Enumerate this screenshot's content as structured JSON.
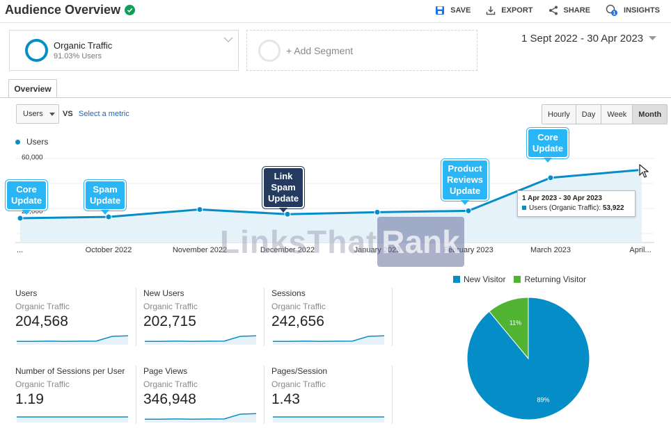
{
  "header": {
    "title": "Audience Overview",
    "actions": {
      "save": "SAVE",
      "export": "EXPORT",
      "share": "SHARE",
      "insights": "INSIGHTS"
    },
    "insights_badge": "1"
  },
  "segment": {
    "name": "Organic Traffic",
    "subtitle": "91.03% Users",
    "add_label": "+ Add Segment"
  },
  "date_range": "1 Sept 2022 - 30 Apr 2023",
  "tabs": {
    "overview": "Overview"
  },
  "controls": {
    "metric": "Users",
    "vs": "VS",
    "select_metric": "Select a metric",
    "granularity": [
      "Hourly",
      "Day",
      "Week",
      "Month"
    ],
    "selected_granularity": "Month"
  },
  "chart_data": {
    "type": "line",
    "series": [
      {
        "name": "Users",
        "values": [
          18000,
          19000,
          24500,
          21000,
          22500,
          23500,
          48000,
          53922
        ]
      }
    ],
    "x": [
      "...",
      "October 2022",
      "November 2022",
      "December 2022",
      "January 2023",
      "February 2023",
      "March 2023",
      "April..."
    ],
    "ytick_labels": [
      "60,000",
      "20,000"
    ],
    "ylim": [
      0,
      68000
    ],
    "color": "#058dc7",
    "grid": true
  },
  "callouts": [
    {
      "text": "Core\nUpdate",
      "style": "blue"
    },
    {
      "text": "Spam\nUpdate",
      "style": "blue"
    },
    {
      "text": "Link\nSpam\nUpdate",
      "style": "dark"
    },
    {
      "text": "Product\nReviews\nUpdate",
      "style": "blue"
    },
    {
      "text": "Core\nUpdate",
      "style": "blue"
    }
  ],
  "tooltip": {
    "date": "1 Apr 2023 - 30 Apr 2023",
    "label": "Users (Organic Traffic):",
    "value": "53,922"
  },
  "watermark": {
    "left": "LinksThat",
    "right": "Rank"
  },
  "metrics": [
    {
      "name": "Users",
      "segment": "Organic Traffic",
      "value": "204,568",
      "spark": [
        3,
        3,
        3.2,
        3,
        3.1,
        3.2,
        7.5,
        8
      ]
    },
    {
      "name": "New Users",
      "segment": "Organic Traffic",
      "value": "202,715",
      "spark": [
        3,
        3,
        3.2,
        3,
        3.1,
        3.2,
        7.5,
        8
      ]
    },
    {
      "name": "Sessions",
      "segment": "Organic Traffic",
      "value": "242,656",
      "spark": [
        3,
        3,
        3.2,
        3,
        3.1,
        3.2,
        7.5,
        8
      ]
    },
    {
      "name": "Number of Sessions per User",
      "segment": "Organic Traffic",
      "value": "1.19",
      "spark": [
        5,
        5,
        5,
        5,
        5,
        5,
        5,
        5
      ]
    },
    {
      "name": "Page Views",
      "segment": "Organic Traffic",
      "value": "346,948",
      "spark": [
        3,
        3,
        3.2,
        3,
        3.1,
        3.2,
        7.5,
        8
      ]
    },
    {
      "name": "Pages/Session",
      "segment": "Organic Traffic",
      "value": "1.43",
      "spark": [
        5,
        5,
        5,
        5,
        5,
        5,
        5,
        5
      ]
    }
  ],
  "pie": {
    "legend": [
      {
        "label": "New Visitor",
        "color": "#058dc7"
      },
      {
        "label": "Returning Visitor",
        "color": "#50b432"
      }
    ],
    "slices": [
      {
        "label": "89%",
        "value": 89,
        "color": "#058dc7"
      },
      {
        "label": "11%",
        "value": 11,
        "color": "#50b432"
      }
    ]
  }
}
